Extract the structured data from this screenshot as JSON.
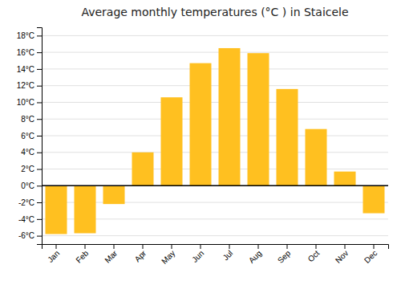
{
  "chart_data": {
    "type": "bar",
    "title": "Average monthly temperatures (°C ) in Staicele",
    "categories": [
      "Jan",
      "Feb",
      "Mar",
      "Apr",
      "May",
      "Jun",
      "Jul",
      "Aug",
      "Sep",
      "Oct",
      "Nov",
      "Dec"
    ],
    "values": [
      -5.8,
      -5.7,
      -2.2,
      4.0,
      10.6,
      14.7,
      16.5,
      15.9,
      11.6,
      6.8,
      1.7,
      -3.3
    ],
    "color": "#FFC020",
    "ylim": [
      -7,
      19
    ],
    "yticks": [
      {
        "value": -6,
        "label": "-6°C"
      },
      {
        "value": -4,
        "label": "-4°C"
      },
      {
        "value": -2,
        "label": "-2°C"
      },
      {
        "value": 0,
        "label": "0°C"
      },
      {
        "value": 2,
        "label": "2°C"
      },
      {
        "value": 4,
        "label": "4°C"
      },
      {
        "value": 6,
        "label": "6°C"
      },
      {
        "value": 8,
        "label": "8°C"
      },
      {
        "value": 10,
        "label": "10°C"
      },
      {
        "value": 12,
        "label": "12°C"
      },
      {
        "value": 14,
        "label": "14°C"
      },
      {
        "value": 16,
        "label": "16°C"
      },
      {
        "value": 18,
        "label": "18°C"
      }
    ],
    "grid": true
  }
}
